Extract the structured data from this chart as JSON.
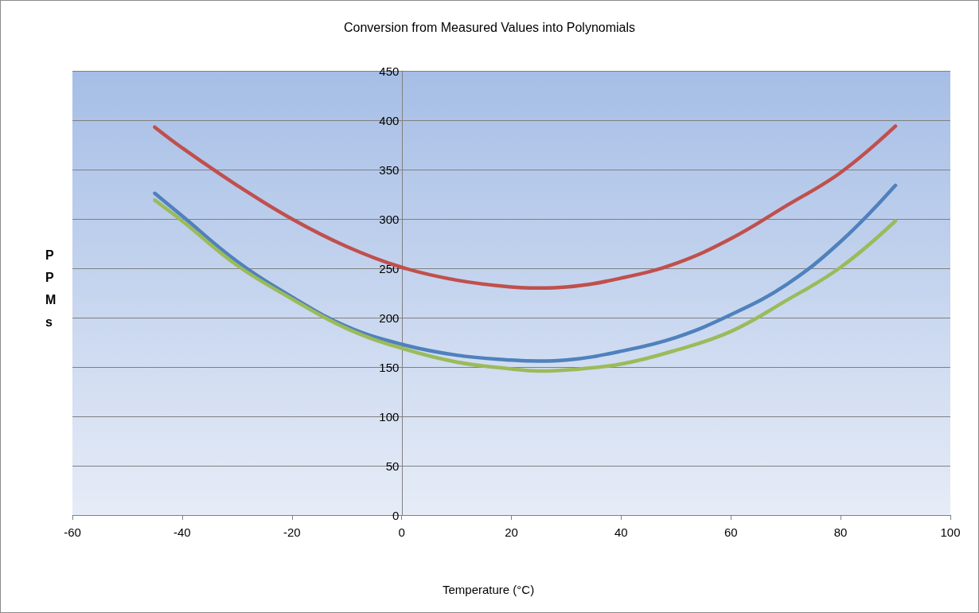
{
  "chart_data": {
    "type": "line",
    "title": "Conversion from Measured Values into Polynomials",
    "xlabel": "Temperature (°C)",
    "ylabel": "PPMs",
    "x": [
      -45,
      -40,
      -30,
      -20,
      -10,
      0,
      10,
      20,
      25,
      30,
      40,
      50,
      60,
      70,
      80,
      90
    ],
    "series": [
      {
        "color": "#c0504d",
        "values": [
          393,
          372,
          334,
          300,
          272,
          251,
          238,
          231,
          230,
          231,
          240,
          255,
          280,
          313,
          347,
          394
        ]
      },
      {
        "color": "#4f81bd",
        "values": [
          326,
          303,
          257,
          221,
          191,
          173,
          162,
          157,
          156,
          157,
          166,
          180,
          203,
          233,
          277,
          334
        ]
      },
      {
        "color": "#9bbb59",
        "values": [
          319,
          298,
          253,
          219,
          189,
          169,
          155,
          148,
          146,
          147,
          153,
          167,
          186,
          217,
          251,
          298
        ]
      }
    ],
    "xlim": [
      -60,
      100
    ],
    "xticks": [
      -60,
      -40,
      -20,
      0,
      20,
      40,
      60,
      80,
      100
    ],
    "ylim": [
      0,
      450
    ],
    "yticks": [
      0,
      50,
      100,
      150,
      200,
      250,
      300,
      350,
      400,
      450
    ],
    "grid": "y",
    "marker": "none"
  }
}
